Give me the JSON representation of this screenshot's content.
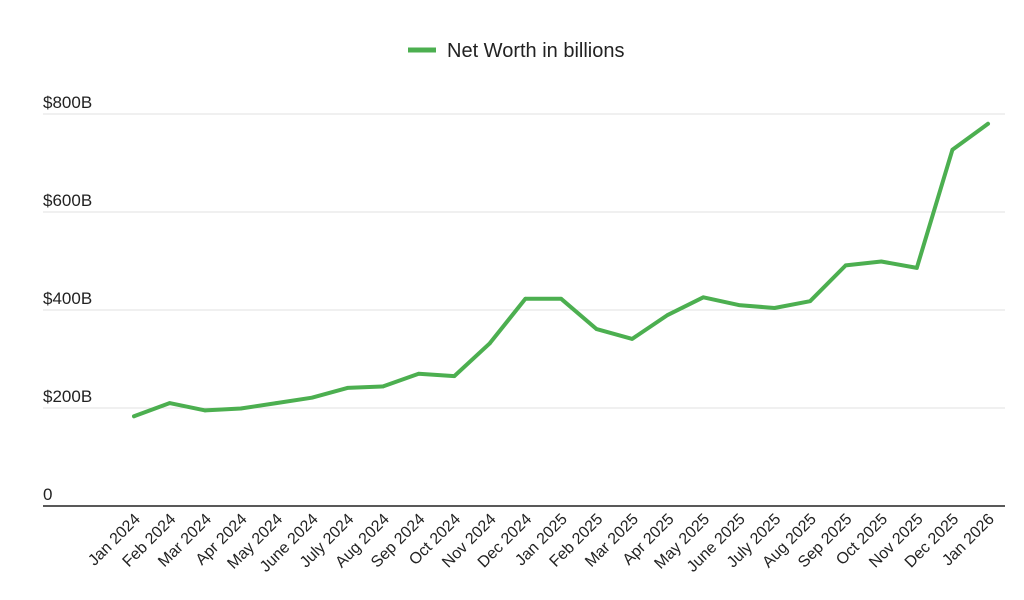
{
  "chart_data": {
    "type": "line",
    "title": "",
    "xlabel": "",
    "ylabel": "",
    "ylim": [
      0,
      800
    ],
    "y_ticks": [
      {
        "value": 0,
        "label": "0"
      },
      {
        "value": 200,
        "label": "$200B"
      },
      {
        "value": 400,
        "label": "$400B"
      },
      {
        "value": 600,
        "label": "$600B"
      },
      {
        "value": 800,
        "label": "$800B"
      }
    ],
    "grid": true,
    "legend_position": "top-center",
    "categories": [
      "Jan 2024",
      "Feb 2024",
      "Mar 2024",
      "Apr 2024",
      "May 2024",
      "June 2024",
      "July 2024",
      "Aug 2024",
      "Sep 2024",
      "Oct 2024",
      "Nov 2024",
      "Dec 2024",
      "Jan 2025",
      "Feb 2025",
      "Mar 2025",
      "Apr 2025",
      "May 2025",
      "June 2025",
      "July 2025",
      "Aug 2025",
      "Sep 2025",
      "Oct 2025",
      "Nov 2025",
      "Dec 2025",
      "Jan 2026"
    ],
    "series": [
      {
        "name": "Net Worth in billions",
        "color": "#4caf50",
        "values": [
          183,
          210,
          195,
          199,
          210,
          221,
          241,
          244,
          270,
          265,
          332,
          423,
          423,
          361,
          341,
          390,
          426,
          410,
          404,
          418,
          491,
          499,
          486,
          727,
          780
        ]
      }
    ]
  }
}
